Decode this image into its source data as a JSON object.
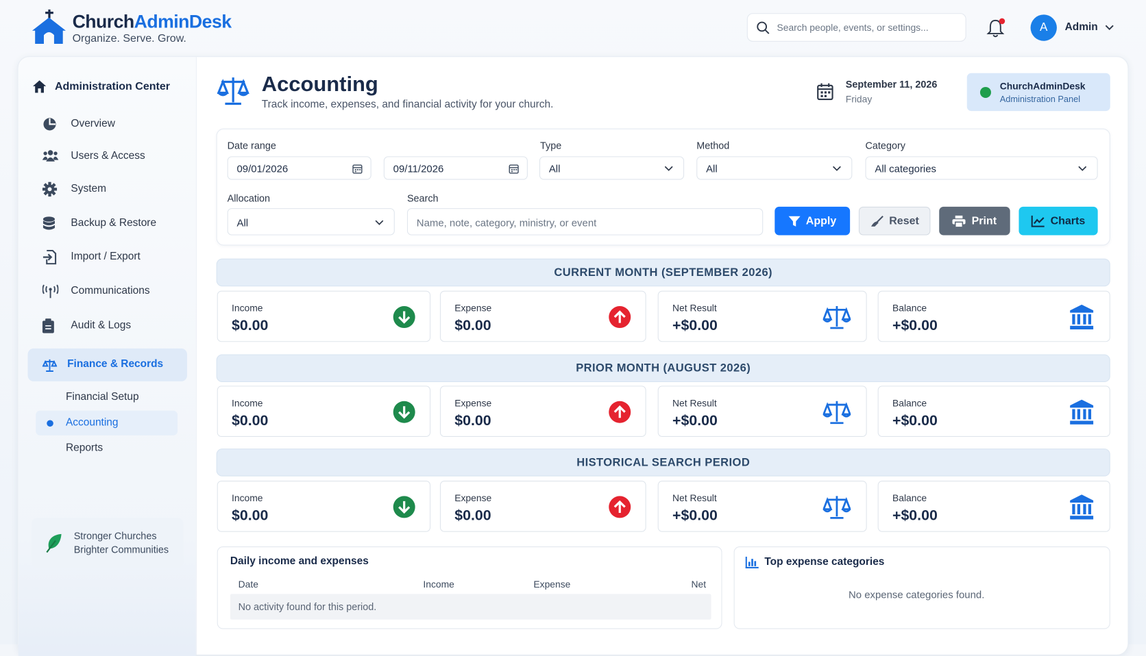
{
  "header": {
    "brand_prefix": "Church",
    "brand_suffix": "AdminDesk",
    "tagline": "Organize. Serve. Grow.",
    "search_placeholder": "Search people, events, or settings...",
    "avatar": "A",
    "user": "Admin"
  },
  "sidebar": {
    "title": "Administration Center",
    "items": [
      "Overview",
      "Users & Access",
      "System",
      "Backup & Restore",
      "Import / Export",
      "Communications",
      "Audit & Logs"
    ],
    "active": "Finance & Records",
    "subitems": [
      "Financial Setup",
      "Accounting",
      "Reports"
    ],
    "footer": [
      "Stronger Churches",
      "Brighter Communities"
    ]
  },
  "page": {
    "title": "Accounting",
    "subtitle": "Track income, expenses, and financial activity for your church.",
    "date": "September 11, 2026",
    "weekday": "Friday",
    "panel_title": "ChurchAdminDesk",
    "panel_subtitle": "Administration Panel"
  },
  "filters": {
    "date_range_label": "Date range",
    "date_from": "09/01/2026",
    "date_to": "09/11/2026",
    "type_label": "Type",
    "type": "All",
    "method_label": "Method",
    "method": "All",
    "category_label": "Category",
    "category": "All categories",
    "allocation_label": "Allocation",
    "allocation": "All",
    "search_label": "Search",
    "search_placeholder": "Name, note, category, ministry, or event",
    "buttons": [
      "Apply",
      "Reset",
      "Print",
      "Charts"
    ]
  },
  "sections": [
    {
      "title": "CURRENT MONTH (SEPTEMBER 2026)",
      "cards": [
        {
          "label": "Income",
          "value": "$0.00"
        },
        {
          "label": "Expense",
          "value": "$0.00"
        },
        {
          "label": "Net Result",
          "value": "+$0.00"
        },
        {
          "label": "Balance",
          "value": "+$0.00"
        }
      ]
    },
    {
      "title": "PRIOR MONTH (AUGUST 2026)",
      "cards": [
        {
          "label": "Income",
          "value": "$0.00"
        },
        {
          "label": "Expense",
          "value": "$0.00"
        },
        {
          "label": "Net Result",
          "value": "+$0.00"
        },
        {
          "label": "Balance",
          "value": "+$0.00"
        }
      ]
    },
    {
      "title": "HISTORICAL SEARCH PERIOD",
      "cards": [
        {
          "label": "Income",
          "value": "$0.00"
        },
        {
          "label": "Expense",
          "value": "$0.00"
        },
        {
          "label": "Net Result",
          "value": "+$0.00"
        },
        {
          "label": "Balance",
          "value": "+$0.00"
        }
      ]
    }
  ],
  "daily": {
    "title": "Daily income and expenses",
    "columns": [
      "Date",
      "Income",
      "Expense",
      "Net"
    ],
    "empty": "No activity found for this period."
  },
  "top_expense": {
    "title": "Top expense categories",
    "empty": "No expense categories found."
  }
}
